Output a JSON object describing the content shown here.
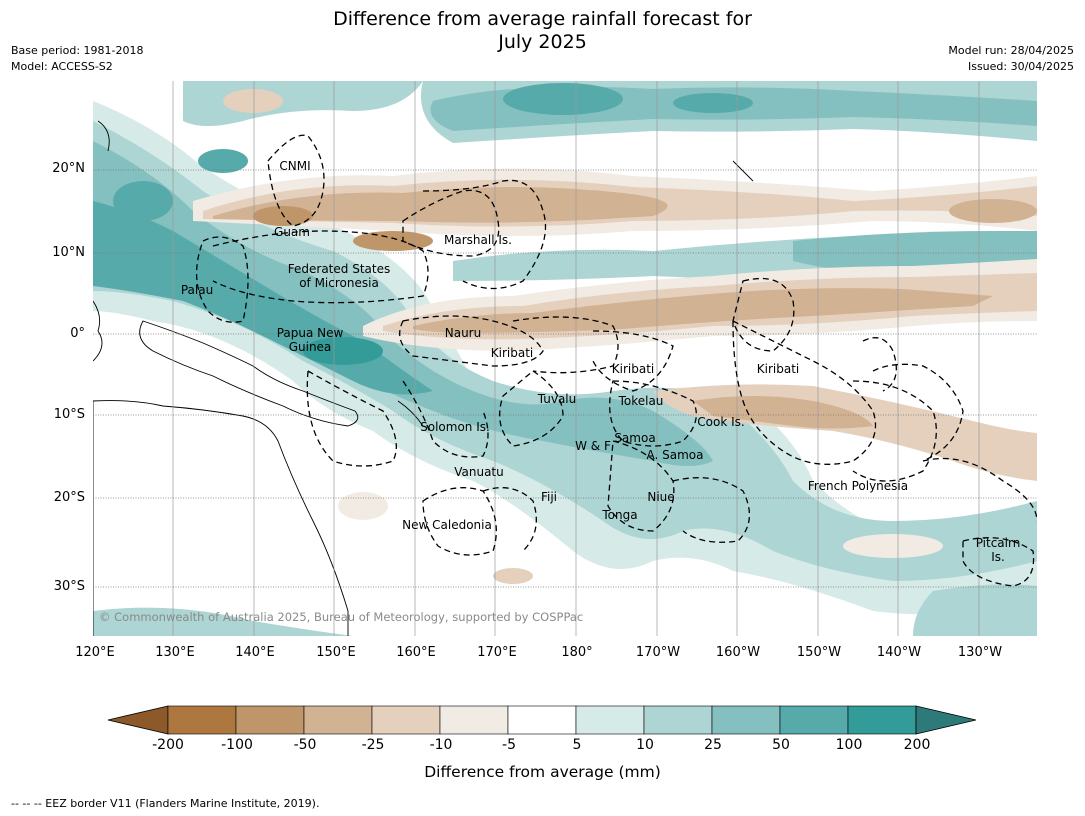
{
  "title_line1": "Difference from average rainfall forecast for",
  "title_line2": "July 2025",
  "meta_left": {
    "base_period": "Base period: 1981-2018",
    "model": "Model: ACCESS-S2"
  },
  "meta_right": {
    "model_run": "Model run: 28/04/2025",
    "issued": "Issued: 30/04/2025"
  },
  "lat_labels": [
    "20°N",
    "10°N",
    "0°",
    "10°S",
    "20°S",
    "30°S"
  ],
  "lon_labels": [
    "120°E",
    "130°E",
    "140°E",
    "150°E",
    "160°E",
    "170°E",
    "180°",
    "170°W",
    "160°W",
    "150°W",
    "140°W",
    "130°W"
  ],
  "regions": {
    "cnmi": "CNMI",
    "guam": "Guam",
    "marshall": "Marshall Is.",
    "fsm_1": "Federated States",
    "fsm_2": "of Micronesia",
    "palau": "Palau",
    "png_1": "Papua New",
    "png_2": "Guinea",
    "nauru": "Nauru",
    "kiribati_w": "Kiribati",
    "kiribati_c": "Kiribati",
    "kiribati_e": "Kiribati",
    "tuvalu": "Tuvalu",
    "tokelau": "Tokelau",
    "cook": "Cook Is.",
    "solomon": "Solomon Is.",
    "wf": "W & F",
    "samoa": "Samoa",
    "a_samoa": "A. Samoa",
    "vanuatu": "Vanuatu",
    "fiji": "Fiji",
    "niue": "Niue",
    "tonga": "Tonga",
    "french_polynesia": "French Polynesia",
    "new_caledonia": "New Caledonia",
    "pitcairn_1": "Pitcairn",
    "pitcairn_2": "Is."
  },
  "copyright": "© Commonwealth of Australia 2025, Bureau of Meteorology, supported by COSPPac",
  "colorbar": {
    "ticks": [
      "-200",
      "-100",
      "-50",
      "-25",
      "-10",
      "-5",
      "5",
      "10",
      "25",
      "50",
      "100",
      "200"
    ],
    "colors": [
      "#ad7840",
      "#bf956a",
      "#d1b293",
      "#e5d0bd",
      "#f1ebe4",
      "#ffffff",
      "#d6eae8",
      "#acd5d3",
      "#84c0bf",
      "#56abaa",
      "#339b98"
    ],
    "extend_low_color": "#8c5a2a",
    "extend_high_color": "#2e7a78",
    "label": "Difference from average (mm)"
  },
  "eez_note": "--  --  -- EEZ border V11 (Flanders Marine Institute, 2019)."
}
